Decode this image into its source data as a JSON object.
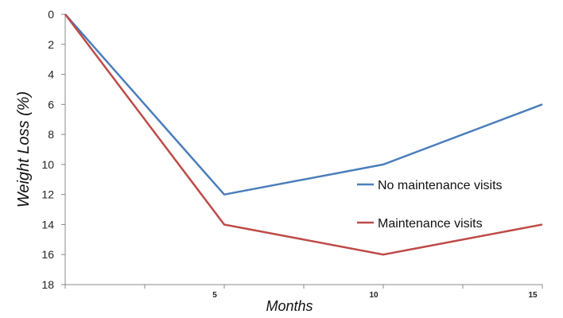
{
  "chart_data": {
    "type": "line",
    "title": "",
    "xlabel": "Months",
    "ylabel": "Weight Loss (%)",
    "x": [
      0,
      5,
      10,
      15
    ],
    "x_tick_labels": [
      "5",
      "10",
      "15"
    ],
    "x_tick_values": [
      5,
      10,
      15
    ],
    "xlim": [
      0,
      15
    ],
    "ylim": [
      0,
      18
    ],
    "y_inverted": true,
    "y_ticks": [
      0,
      2,
      4,
      6,
      8,
      10,
      12,
      14,
      16,
      18
    ],
    "grid": false,
    "legend_position": "right",
    "series": [
      {
        "name": "No maintenance visits",
        "values": [
          0,
          12,
          10,
          6
        ],
        "color": "#4a7ebb"
      },
      {
        "name": "Maintenance visits",
        "values": [
          0,
          14,
          16,
          14
        ],
        "color": "#be4b48"
      }
    ]
  }
}
